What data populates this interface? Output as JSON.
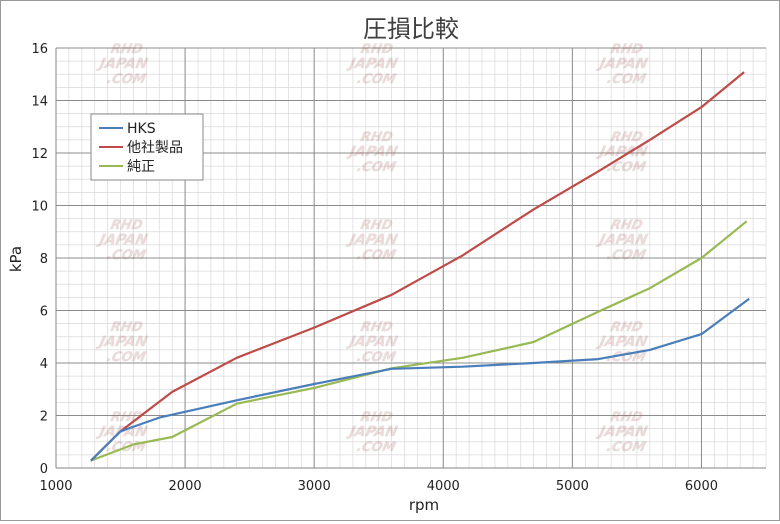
{
  "chart_data": {
    "type": "line",
    "title": "圧損比較",
    "xlabel": "rpm",
    "ylabel": "kPa",
    "xlim": [
      1000,
      6500
    ],
    "ylim": [
      0,
      16
    ],
    "x_ticks": [
      1000,
      2000,
      3000,
      4000,
      5000,
      6000
    ],
    "y_ticks": [
      0,
      2,
      4,
      6,
      8,
      10,
      12,
      14,
      16
    ],
    "x_tick_labels": [
      "1000",
      "2000",
      "3000",
      "4000",
      "5000",
      "6000"
    ],
    "y_tick_labels": [
      "0",
      "2",
      "4",
      "6",
      "8",
      "10",
      "12",
      "14",
      "16"
    ],
    "grid": true,
    "legend_position": "top-left",
    "series": [
      {
        "name": "HKS",
        "color": "#4a7ebb",
        "x": [
          1270,
          1500,
          1800,
          2400,
          3000,
          3600,
          4150,
          4700,
          5200,
          5600,
          6000,
          6370
        ],
        "y": [
          0.28,
          1.4,
          1.92,
          2.58,
          3.2,
          3.78,
          3.86,
          4.0,
          4.15,
          4.5,
          5.1,
          6.45
        ]
      },
      {
        "name": "他社製品",
        "color": "#be4b48",
        "x": [
          1270,
          1500,
          1900,
          2400,
          3000,
          3600,
          4150,
          4700,
          5200,
          5600,
          6000,
          6330
        ],
        "y": [
          0.28,
          1.4,
          2.9,
          4.2,
          5.35,
          6.6,
          8.1,
          9.85,
          11.3,
          12.5,
          13.75,
          15.08
        ]
      },
      {
        "name": "純正",
        "color": "#98b954",
        "x": [
          1270,
          1600,
          1900,
          2400,
          3000,
          3600,
          4150,
          4700,
          5200,
          5600,
          6000,
          6350
        ],
        "y": [
          0.28,
          0.9,
          1.18,
          2.45,
          3.05,
          3.8,
          4.2,
          4.8,
          5.95,
          6.85,
          8.0,
          9.4
        ]
      }
    ]
  },
  "watermark": {
    "line1": "RHD",
    "line2": "JAPAN",
    "line3": ".COM"
  }
}
